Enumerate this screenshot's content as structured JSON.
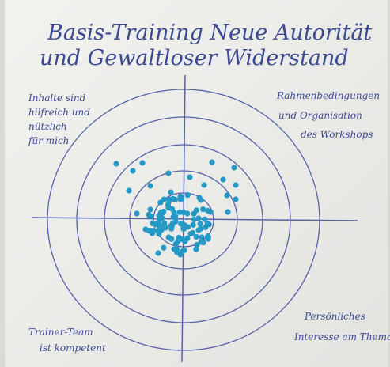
{
  "board": {
    "title": [
      "Basis-Training Neue Autorität",
      "und Gewaltloser Widerstand"
    ],
    "quadrants": {
      "top_left": [
        "Inhalte sind",
        "hilfreich und",
        "nützlich",
        "für mich"
      ],
      "top_right": [
        "Rahmenbedingungen",
        "und Organisation",
        "des Workshops"
      ],
      "bottom_left": [
        "Trainer-Team",
        "ist kompetent"
      ],
      "bottom_right": [
        "Persönliches",
        "Interesse am Thema"
      ]
    }
  }
}
